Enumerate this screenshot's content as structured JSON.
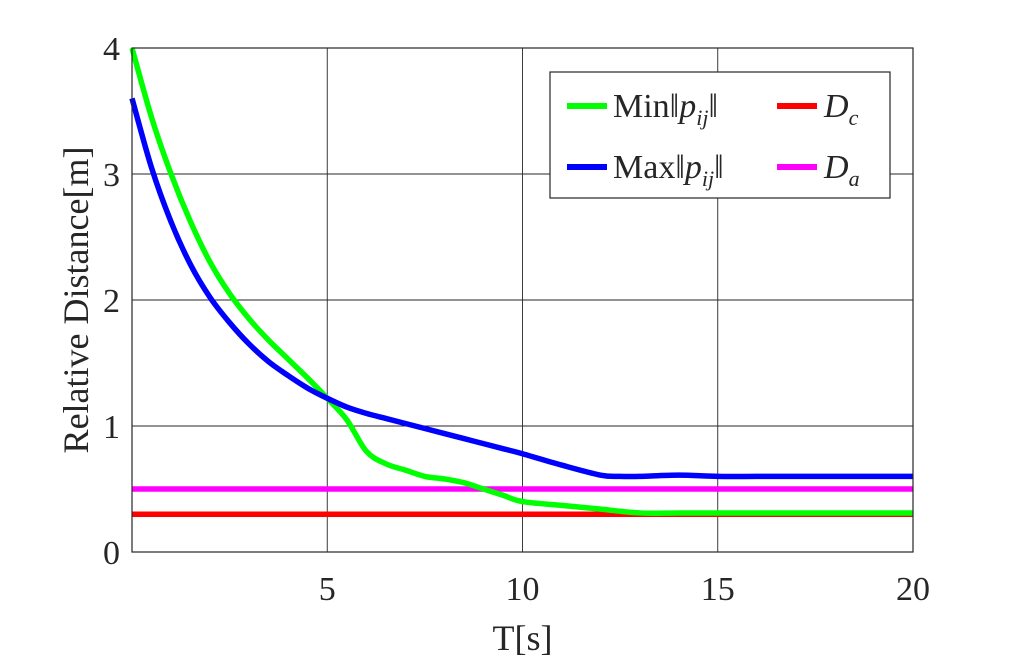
{
  "chart_data": {
    "type": "line",
    "title": "",
    "xlabel": "T[s]",
    "ylabel": "Relative Distance[m]",
    "xlim": [
      0,
      20
    ],
    "ylim": [
      0,
      4
    ],
    "xticks": [
      5,
      10,
      15,
      20
    ],
    "xtick_labels": [
      "5",
      "10",
      "15",
      "20"
    ],
    "yticks": [
      0,
      1,
      2,
      3,
      4
    ],
    "ytick_labels": [
      "0",
      "1",
      "2",
      "3",
      "4"
    ],
    "grid": true,
    "legend_position": "top-right",
    "series": [
      {
        "name": "Min||pij||",
        "color": "#00ff00",
        "x": [
          0,
          0.5,
          1,
          1.5,
          2,
          2.5,
          3,
          3.5,
          4,
          4.5,
          5,
          5.5,
          6,
          6.5,
          7,
          7.5,
          8,
          8.5,
          9,
          9.5,
          10,
          11,
          12,
          13,
          14,
          15,
          16,
          17,
          18,
          19,
          20
        ],
        "y": [
          4.0,
          3.45,
          3.0,
          2.62,
          2.3,
          2.05,
          1.85,
          1.68,
          1.53,
          1.38,
          1.22,
          1.05,
          0.8,
          0.7,
          0.65,
          0.6,
          0.58,
          0.55,
          0.5,
          0.45,
          0.4,
          0.37,
          0.34,
          0.31,
          0.31,
          0.31,
          0.31,
          0.31,
          0.31,
          0.31,
          0.31
        ]
      },
      {
        "name": "Max||pij||",
        "color": "#0000ff",
        "x": [
          0,
          0.5,
          1,
          1.5,
          2,
          2.5,
          3,
          3.5,
          4,
          4.5,
          5,
          5.5,
          6,
          6.5,
          7,
          7.5,
          8,
          8.5,
          9,
          9.5,
          10,
          11,
          12,
          12.5,
          13,
          14,
          15,
          16,
          17,
          18,
          19,
          20
        ],
        "y": [
          3.6,
          3.05,
          2.62,
          2.28,
          2.02,
          1.82,
          1.65,
          1.51,
          1.4,
          1.3,
          1.22,
          1.15,
          1.1,
          1.06,
          1.02,
          0.98,
          0.94,
          0.9,
          0.86,
          0.82,
          0.78,
          0.69,
          0.61,
          0.6,
          0.6,
          0.61,
          0.6,
          0.6,
          0.6,
          0.6,
          0.6,
          0.6
        ]
      },
      {
        "name": "Dc",
        "color": "#ff0000",
        "x": [
          0,
          20
        ],
        "y": [
          0.3,
          0.3
        ]
      },
      {
        "name": "Da",
        "color": "#ff00ff",
        "x": [
          0,
          20
        ],
        "y": [
          0.5,
          0.5
        ]
      }
    ]
  }
}
